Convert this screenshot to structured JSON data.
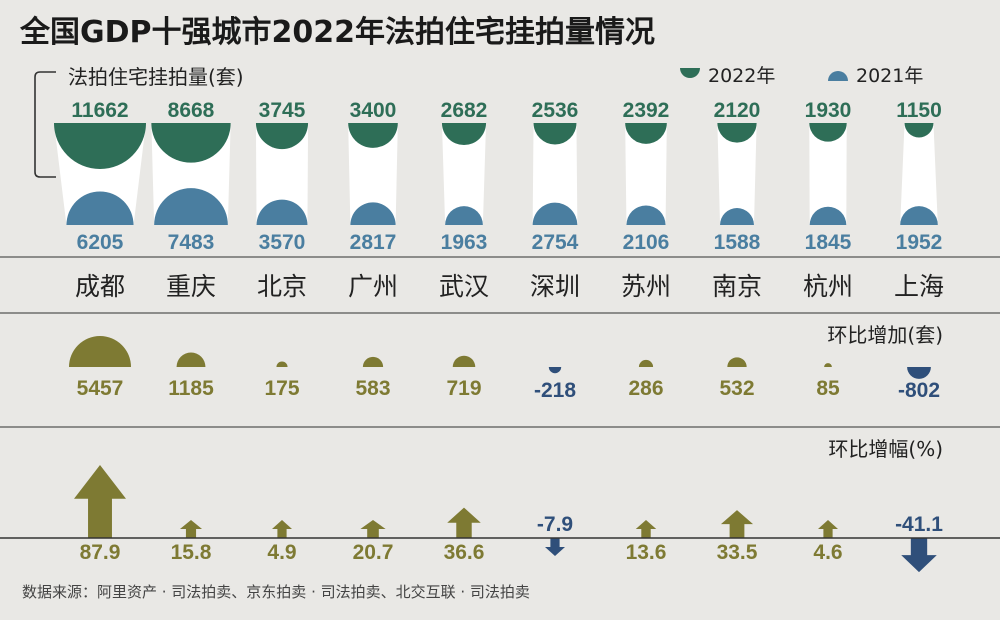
{
  "title": "全国GDP十强城市2022年法拍住宅挂拍量情况",
  "source": "数据来源：阿里资产 · 司法拍卖、京东拍卖 · 司法拍卖、北交互联 · 司法拍卖",
  "colors": {
    "y2022": "#2e6e57",
    "y2021": "#4a7ea0",
    "positive": "#7e7a33",
    "negative": "#2f4f7a",
    "background": "#e9e8e5"
  },
  "chart_data": [
    {
      "type": "bar",
      "panel": "volume",
      "ylabel": "法拍住宅挂拍量(套)",
      "categories": [
        "成都",
        "重庆",
        "北京",
        "广州",
        "武汉",
        "深圳",
        "苏州",
        "南京",
        "杭州",
        "上海"
      ],
      "series": [
        {
          "name": "2022年",
          "values": [
            11662,
            8668,
            3745,
            3400,
            2682,
            2536,
            2392,
            2120,
            1930,
            1150
          ]
        },
        {
          "name": "2021年",
          "values": [
            6205,
            7483,
            3570,
            2817,
            1963,
            2754,
            2106,
            1588,
            1845,
            1952
          ]
        }
      ],
      "legend": "top-right"
    },
    {
      "type": "bar",
      "panel": "increase",
      "ylabel": "环比增加(套)",
      "categories": [
        "成都",
        "重庆",
        "北京",
        "广州",
        "武汉",
        "深圳",
        "苏州",
        "南京",
        "杭州",
        "上海"
      ],
      "values": [
        5457,
        1185,
        175,
        583,
        719,
        -218,
        286,
        532,
        85,
        -802
      ],
      "labels": [
        "5457",
        "1185",
        "175",
        "583",
        "719",
        "-218",
        "286",
        "532",
        "85",
        "-802"
      ]
    },
    {
      "type": "bar",
      "panel": "growth",
      "ylabel": "环比增幅(%)",
      "categories": [
        "成都",
        "重庆",
        "北京",
        "广州",
        "武汉",
        "深圳",
        "苏州",
        "南京",
        "杭州",
        "上海"
      ],
      "values": [
        87.9,
        15.8,
        4.9,
        20.7,
        36.6,
        -7.9,
        13.6,
        33.5,
        4.6,
        -41.1
      ],
      "labels": [
        "87.9",
        "15.8",
        "4.9",
        "20.7",
        "36.6",
        "-7.9",
        "13.6",
        "33.5",
        "4.6",
        "-41.1"
      ]
    }
  ]
}
